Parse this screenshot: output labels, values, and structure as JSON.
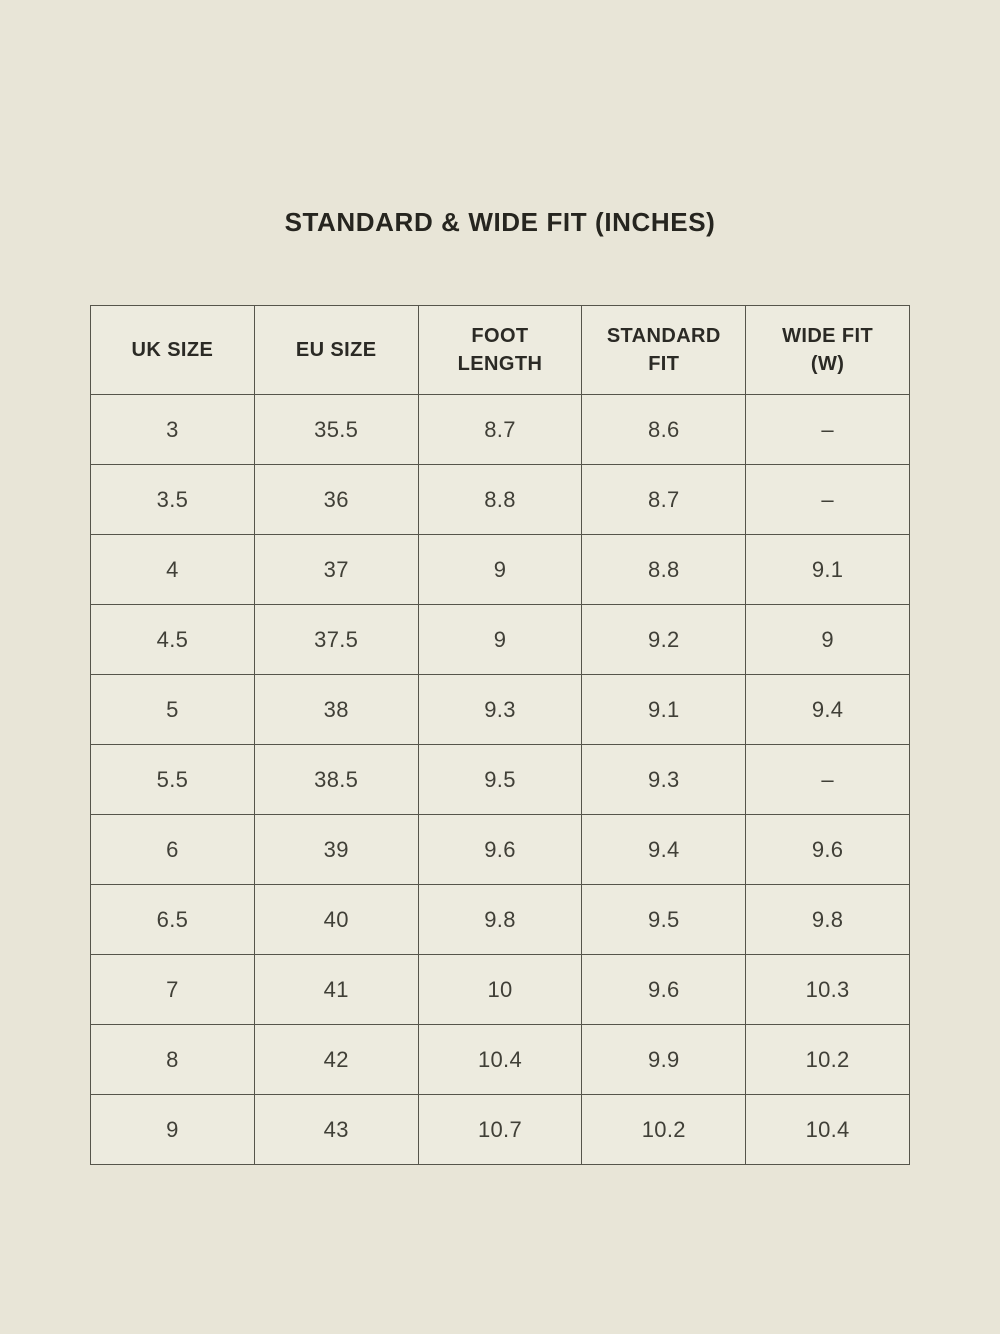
{
  "title": "STANDARD & WIDE FIT (INCHES)",
  "colors": {
    "page_background": "#e8e5d7",
    "cell_background": "#edebdf",
    "border": "#56554b",
    "text": "#3c3b34"
  },
  "table": {
    "headers": [
      "UK SIZE",
      "EU SIZE",
      "FOOT\nLENGTH",
      "STANDARD\nFIT",
      "WIDE FIT\n(W)"
    ],
    "rows": [
      [
        "3",
        "35.5",
        "8.7",
        "8.6",
        "–"
      ],
      [
        "3.5",
        "36",
        "8.8",
        "8.7",
        "–"
      ],
      [
        "4",
        "37",
        "9",
        "8.8",
        "9.1"
      ],
      [
        "4.5",
        "37.5",
        "9",
        "9.2",
        "9"
      ],
      [
        "5",
        "38",
        "9.3",
        "9.1",
        "9.4"
      ],
      [
        "5.5",
        "38.5",
        "9.5",
        "9.3",
        "–"
      ],
      [
        "6",
        "39",
        "9.6",
        "9.4",
        "9.6"
      ],
      [
        "6.5",
        "40",
        "9.8",
        "9.5",
        "9.8"
      ],
      [
        "7",
        "41",
        "10",
        "9.6",
        "10.3"
      ],
      [
        "8",
        "42",
        "10.4",
        "9.9",
        "10.2"
      ],
      [
        "9",
        "43",
        "10.7",
        "10.2",
        "10.4"
      ]
    ]
  },
  "chart_data": {
    "type": "table",
    "title": "STANDARD & WIDE FIT (INCHES)",
    "columns": [
      "UK SIZE",
      "EU SIZE",
      "FOOT LENGTH",
      "STANDARD FIT",
      "WIDE FIT (W)"
    ],
    "rows": [
      [
        "3",
        "35.5",
        "8.7",
        "8.6",
        "–"
      ],
      [
        "3.5",
        "36",
        "8.8",
        "8.7",
        "–"
      ],
      [
        "4",
        "37",
        "9",
        "8.8",
        "9.1"
      ],
      [
        "4.5",
        "37.5",
        "9",
        "9.2",
        "9"
      ],
      [
        "5",
        "38",
        "9.3",
        "9.1",
        "9.4"
      ],
      [
        "5.5",
        "38.5",
        "9.5",
        "9.3",
        "–"
      ],
      [
        "6",
        "39",
        "9.6",
        "9.4",
        "9.6"
      ],
      [
        "6.5",
        "40",
        "9.8",
        "9.5",
        "9.8"
      ],
      [
        "7",
        "41",
        "10",
        "9.6",
        "10.3"
      ],
      [
        "8",
        "42",
        "10.4",
        "9.9",
        "10.2"
      ],
      [
        "9",
        "43",
        "10.7",
        "10.2",
        "10.4"
      ]
    ]
  }
}
